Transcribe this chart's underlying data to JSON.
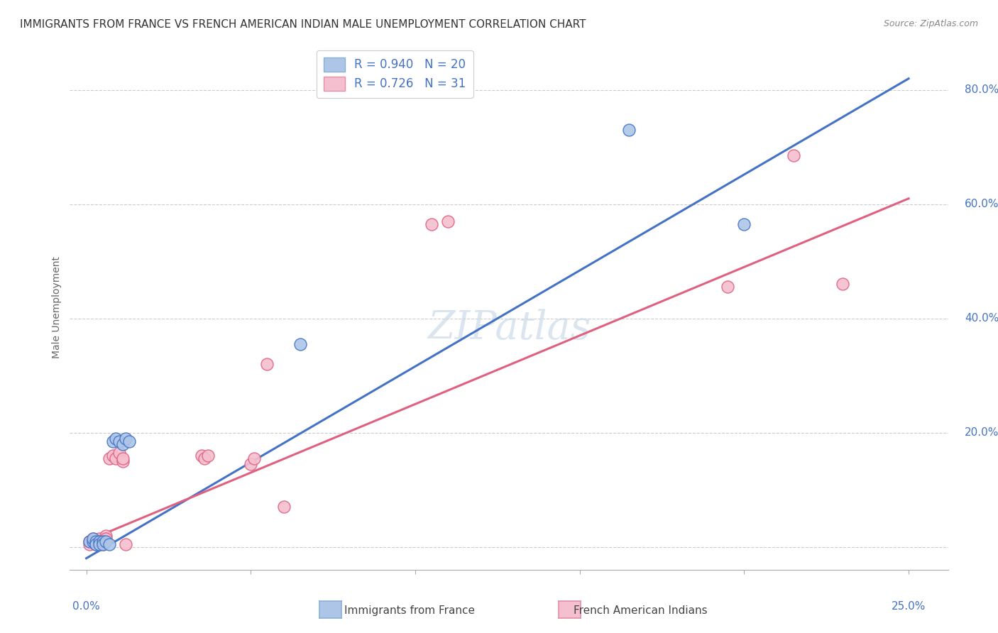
{
  "title": "IMMIGRANTS FROM FRANCE VS FRENCH AMERICAN INDIAN MALE UNEMPLOYMENT CORRELATION CHART",
  "source": "Source: ZipAtlas.com",
  "ylabel": "Male Unemployment",
  "blue_R": 0.94,
  "blue_N": 20,
  "pink_R": 0.726,
  "pink_N": 31,
  "blue_color": "#adc6e8",
  "pink_color": "#f5bfcf",
  "blue_line_color": "#4472c4",
  "pink_line_color": "#e06080",
  "legend_blue_label": "Immigrants from France",
  "legend_pink_label": "French American Indians",
  "watermark": "ZIPatlas",
  "blue_line_x0": 0.0,
  "blue_line_y0": -0.02,
  "blue_line_x1": 0.25,
  "blue_line_y1": 0.82,
  "pink_line_x0": 0.0,
  "pink_line_y0": 0.01,
  "pink_line_x1": 0.25,
  "pink_line_y1": 0.61,
  "blue_points": [
    [
      0.001,
      0.01
    ],
    [
      0.002,
      0.01
    ],
    [
      0.002,
      0.015
    ],
    [
      0.003,
      0.01
    ],
    [
      0.003,
      0.005
    ],
    [
      0.004,
      0.01
    ],
    [
      0.004,
      0.005
    ],
    [
      0.005,
      0.01
    ],
    [
      0.005,
      0.005
    ],
    [
      0.006,
      0.01
    ],
    [
      0.007,
      0.005
    ],
    [
      0.008,
      0.185
    ],
    [
      0.009,
      0.19
    ],
    [
      0.01,
      0.185
    ],
    [
      0.011,
      0.18
    ],
    [
      0.012,
      0.19
    ],
    [
      0.013,
      0.185
    ],
    [
      0.065,
      0.355
    ],
    [
      0.165,
      0.73
    ],
    [
      0.2,
      0.565
    ]
  ],
  "pink_points": [
    [
      0.001,
      0.01
    ],
    [
      0.001,
      0.005
    ],
    [
      0.002,
      0.015
    ],
    [
      0.002,
      0.01
    ],
    [
      0.003,
      0.01
    ],
    [
      0.003,
      0.005
    ],
    [
      0.004,
      0.015
    ],
    [
      0.004,
      0.01
    ],
    [
      0.005,
      0.01
    ],
    [
      0.005,
      0.005
    ],
    [
      0.006,
      0.02
    ],
    [
      0.006,
      0.015
    ],
    [
      0.007,
      0.155
    ],
    [
      0.008,
      0.16
    ],
    [
      0.009,
      0.155
    ],
    [
      0.01,
      0.165
    ],
    [
      0.011,
      0.15
    ],
    [
      0.011,
      0.155
    ],
    [
      0.012,
      0.005
    ],
    [
      0.035,
      0.16
    ],
    [
      0.036,
      0.155
    ],
    [
      0.037,
      0.16
    ],
    [
      0.05,
      0.145
    ],
    [
      0.051,
      0.155
    ],
    [
      0.055,
      0.32
    ],
    [
      0.06,
      0.07
    ],
    [
      0.105,
      0.565
    ],
    [
      0.11,
      0.57
    ],
    [
      0.195,
      0.455
    ],
    [
      0.215,
      0.685
    ],
    [
      0.23,
      0.46
    ]
  ],
  "xmin": -0.005,
  "xmax": 0.262,
  "ymin": -0.04,
  "ymax": 0.88,
  "grid_yticks": [
    0.0,
    0.2,
    0.4,
    0.6,
    0.8
  ],
  "right_ytick_labels": [
    "20.0%",
    "40.0%",
    "60.0%",
    "80.0%"
  ],
  "right_ytick_vals": [
    0.2,
    0.4,
    0.6,
    0.8
  ],
  "title_fontsize": 11,
  "source_fontsize": 9,
  "axis_label_fontsize": 10,
  "legend_fontsize": 12,
  "watermark_fontsize": 40
}
